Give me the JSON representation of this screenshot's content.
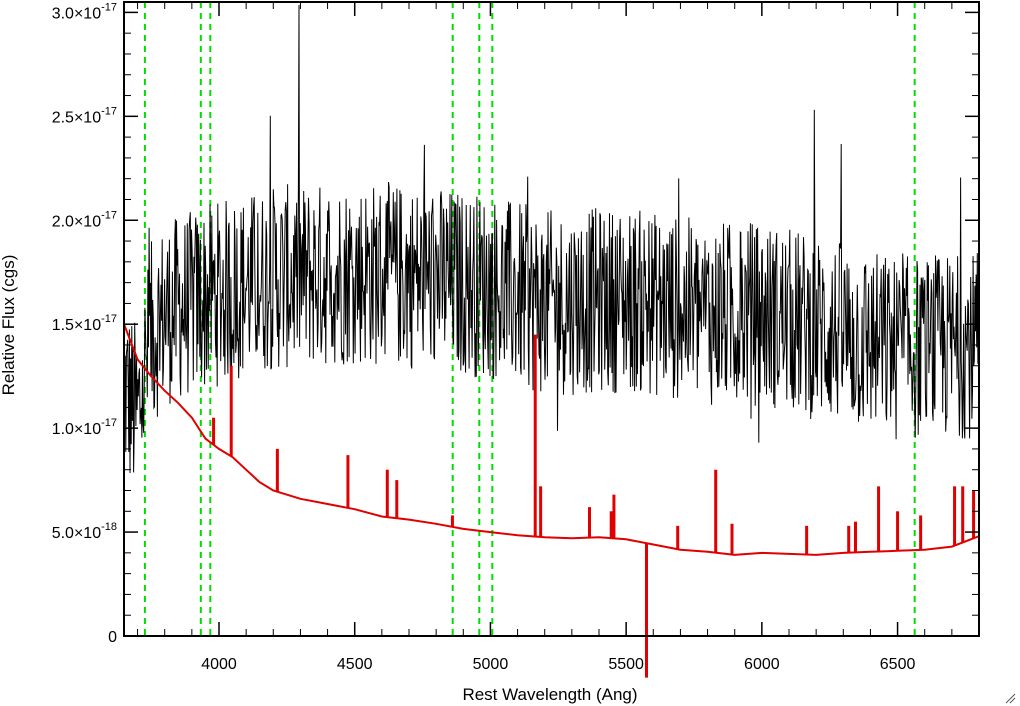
{
  "chart_data": {
    "type": "line",
    "title": "",
    "xlabel": "Rest Wavelength (Ang)",
    "ylabel": "Relative Flux (cgs)",
    "xlim": [
      3650,
      6800
    ],
    "ylim": [
      0,
      3.05e-17
    ],
    "xticks": [
      4000,
      4500,
      5000,
      5500,
      6000,
      6500
    ],
    "xtick_labels": [
      "4000",
      "4500",
      "5000",
      "5500",
      "6000",
      "6500"
    ],
    "yticks": [
      {
        "value": 0,
        "label": "0"
      },
      {
        "value": 5e-18,
        "mantissa": "5.0",
        "exponent": "-18"
      },
      {
        "value": 1e-17,
        "mantissa": "1.0",
        "exponent": "-17"
      },
      {
        "value": 1.5e-17,
        "mantissa": "1.5",
        "exponent": "-17"
      },
      {
        "value": 2e-17,
        "mantissa": "2.0",
        "exponent": "-17"
      },
      {
        "value": 2.5e-17,
        "mantissa": "2.5",
        "exponent": "-17"
      },
      {
        "value": 3e-17,
        "mantissa": "3.0",
        "exponent": "-17"
      }
    ],
    "grid": false,
    "colors": {
      "observed": "#000000",
      "model": "#e00000",
      "lines": "#00dd00"
    },
    "series": [
      {
        "style": "noisy",
        "color": "#000000",
        "description_points": [
          [
            3650,
            1.2e-17
          ],
          [
            3700,
            1.05e-17
          ],
          [
            3750,
            1.45e-17
          ],
          [
            3800,
            1.55e-17
          ],
          [
            3900,
            1.6e-17
          ],
          [
            4000,
            1.65e-17
          ],
          [
            4200,
            1.72e-17
          ],
          [
            4500,
            1.75e-17
          ],
          [
            4800,
            1.72e-17
          ],
          [
            5000,
            1.68e-17
          ],
          [
            5200,
            1.6e-17
          ],
          [
            5500,
            1.62e-17
          ],
          [
            5800,
            1.55e-17
          ],
          [
            6000,
            1.55e-17
          ],
          [
            6300,
            1.45e-17
          ],
          [
            6500,
            1.38e-17
          ],
          [
            6800,
            1.4e-17
          ]
        ],
        "noise_amplitude": 4.5e-18
      },
      {
        "style": "smooth",
        "color": "#e00000",
        "points": [
          [
            3650,
            1.5e-17
          ],
          [
            3700,
            1.33e-17
          ],
          [
            3750,
            1.25e-17
          ],
          [
            3800,
            1.18e-17
          ],
          [
            3850,
            1.12e-17
          ],
          [
            3900,
            1.05e-17
          ],
          [
            3950,
            9.5e-18
          ],
          [
            4000,
            9e-18
          ],
          [
            4050,
            8.6e-18
          ],
          [
            4100,
            8e-18
          ],
          [
            4150,
            7.4e-18
          ],
          [
            4200,
            7e-18
          ],
          [
            4300,
            6.6e-18
          ],
          [
            4400,
            6.35e-18
          ],
          [
            4500,
            6.1e-18
          ],
          [
            4600,
            5.75e-18
          ],
          [
            4700,
            5.6e-18
          ],
          [
            4800,
            5.4e-18
          ],
          [
            4900,
            5.15e-18
          ],
          [
            5000,
            5e-18
          ],
          [
            5100,
            4.85e-18
          ],
          [
            5200,
            4.75e-18
          ],
          [
            5300,
            4.7e-18
          ],
          [
            5400,
            4.75e-18
          ],
          [
            5500,
            4.65e-18
          ],
          [
            5600,
            4.4e-18
          ],
          [
            5700,
            4.15e-18
          ],
          [
            5800,
            4.05e-18
          ],
          [
            5900,
            3.9e-18
          ],
          [
            6000,
            4e-18
          ],
          [
            6100,
            3.95e-18
          ],
          [
            6200,
            3.9e-18
          ],
          [
            6300,
            4e-18
          ],
          [
            6400,
            4.05e-18
          ],
          [
            6500,
            4.1e-18
          ],
          [
            6600,
            4.15e-18
          ],
          [
            6700,
            4.3e-18
          ],
          [
            6800,
            4.8e-18
          ]
        ],
        "spikes": [
          [
            3980,
            1.05e-17
          ],
          [
            4045,
            1.3e-17
          ],
          [
            4215,
            9e-18
          ],
          [
            4475,
            8.7e-18
          ],
          [
            4620,
            8e-18
          ],
          [
            4655,
            7.5e-18
          ],
          [
            4860,
            5.8e-18
          ],
          [
            5165,
            1.45e-17
          ],
          [
            5185,
            7.2e-18
          ],
          [
            5365,
            6.2e-18
          ],
          [
            5445,
            6e-18
          ],
          [
            5455,
            6.8e-18
          ],
          [
            5690,
            5.3e-18
          ],
          [
            5830,
            8e-18
          ],
          [
            5890,
            5.4e-18
          ],
          [
            6165,
            5.3e-18
          ],
          [
            6320,
            5.3e-18
          ],
          [
            6345,
            5.5e-18
          ],
          [
            6430,
            7.2e-18
          ],
          [
            6500,
            6e-18
          ],
          [
            6585,
            5.8e-18
          ],
          [
            6710,
            7.2e-18
          ],
          [
            6740,
            7.2e-18
          ],
          [
            6780,
            7e-18
          ]
        ],
        "dips": [
          [
            5575,
            -2e-18
          ]
        ]
      }
    ],
    "vertical_lines": [
      3727,
      3933,
      3968,
      4861,
      4959,
      5007,
      6563
    ]
  }
}
